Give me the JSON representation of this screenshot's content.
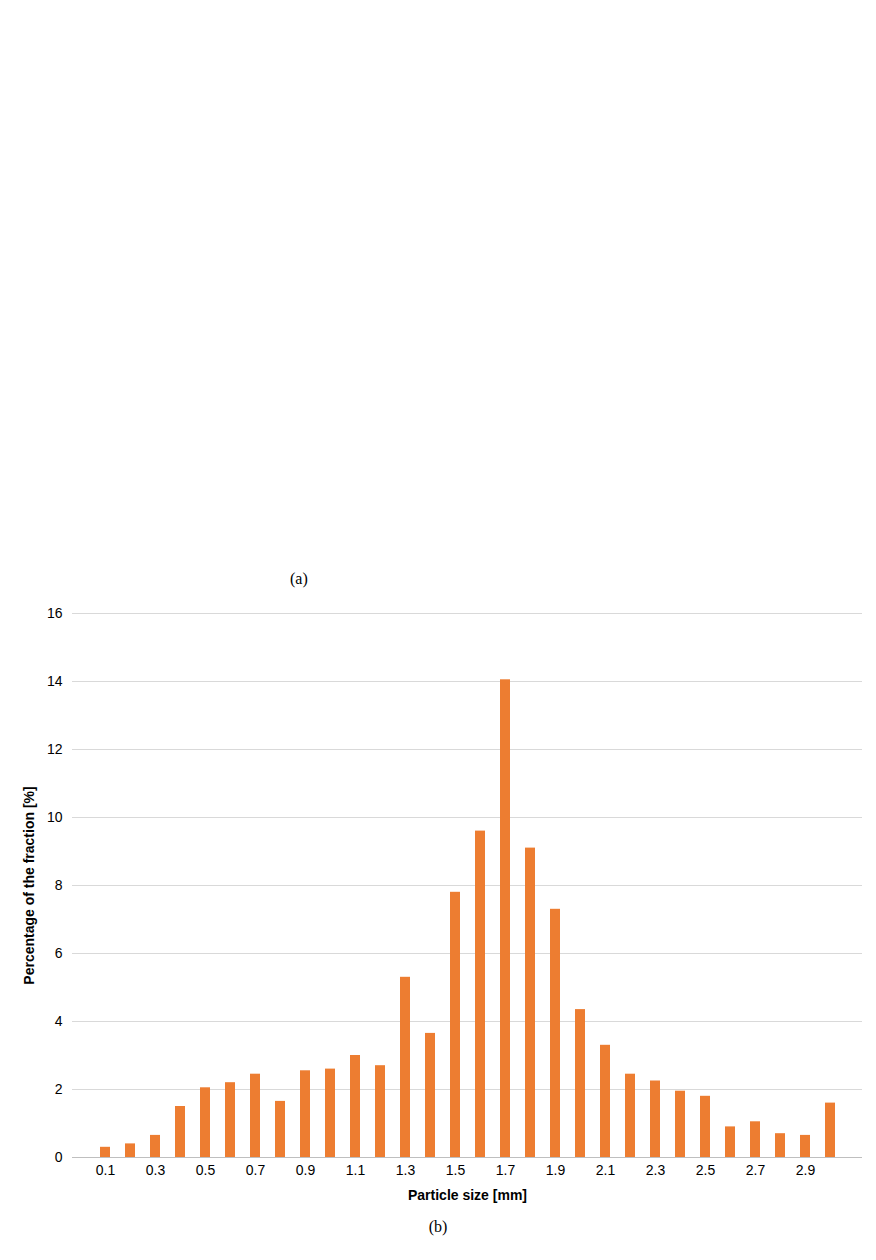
{
  "panels": [
    "(a)",
    "(b)"
  ],
  "chart_data": {
    "type": "bar",
    "x_label": "Particle size [mm]",
    "y_label": "Percentage of the fraction [%]",
    "categories": [
      "0.1",
      null,
      "0.3",
      null,
      "0.5",
      null,
      "0.7",
      null,
      "0.9",
      null,
      "1.1",
      null,
      "1.3",
      null,
      "1.5",
      null,
      "1.7",
      null,
      "1.9",
      null,
      "2.1",
      null,
      "2.3",
      null,
      "2.5",
      null,
      "2.7",
      null,
      "2.9",
      null
    ],
    "values": [
      0.3,
      0.4,
      0.65,
      1.5,
      2.05,
      2.2,
      2.45,
      1.65,
      2.55,
      2.6,
      3.0,
      2.7,
      5.3,
      3.65,
      7.8,
      9.6,
      14.05,
      9.1,
      7.3,
      4.35,
      3.3,
      2.45,
      2.25,
      1.95,
      1.8,
      0.9,
      1.05,
      0.7,
      0.65,
      1.6
    ],
    "color": "#ed7d31",
    "ylim": [
      0,
      16
    ],
    "yticks": [
      0,
      2,
      4,
      6,
      8,
      10,
      12,
      14,
      16
    ],
    "grid": true
  }
}
